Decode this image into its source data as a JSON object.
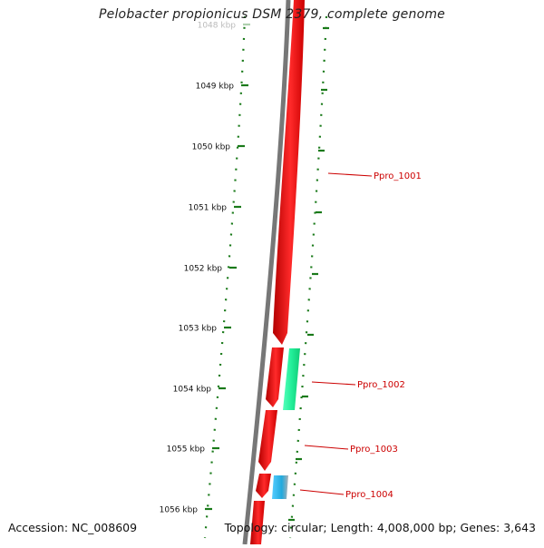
{
  "title": "Pelobacter propionicus DSM 2379, complete genome",
  "accession_label": "Accession: NC_008609",
  "summary_label": "Topology: circular; Length: 4,008,000 bp; Genes: 3,643",
  "ticks": [
    "1048 kbp",
    "1049 kbp",
    "1050 kbp",
    "1051 kbp",
    "1052 kbp",
    "1053 kbp",
    "1054 kbp",
    "1055 kbp",
    "1056 kbp"
  ],
  "genes": [
    {
      "name": "Ppro_1001"
    },
    {
      "name": "Ppro_1002"
    },
    {
      "name": "Ppro_1003"
    },
    {
      "name": "Ppro_1004"
    }
  ],
  "colors": {
    "cds": "#ff0000",
    "rna_or_feature": "#22ee99",
    "small_feature": "#33bbee",
    "backbone": "#777777",
    "tick": "#1a7a1a",
    "label_line": "#cc0000",
    "label_text": "#cc0000"
  }
}
